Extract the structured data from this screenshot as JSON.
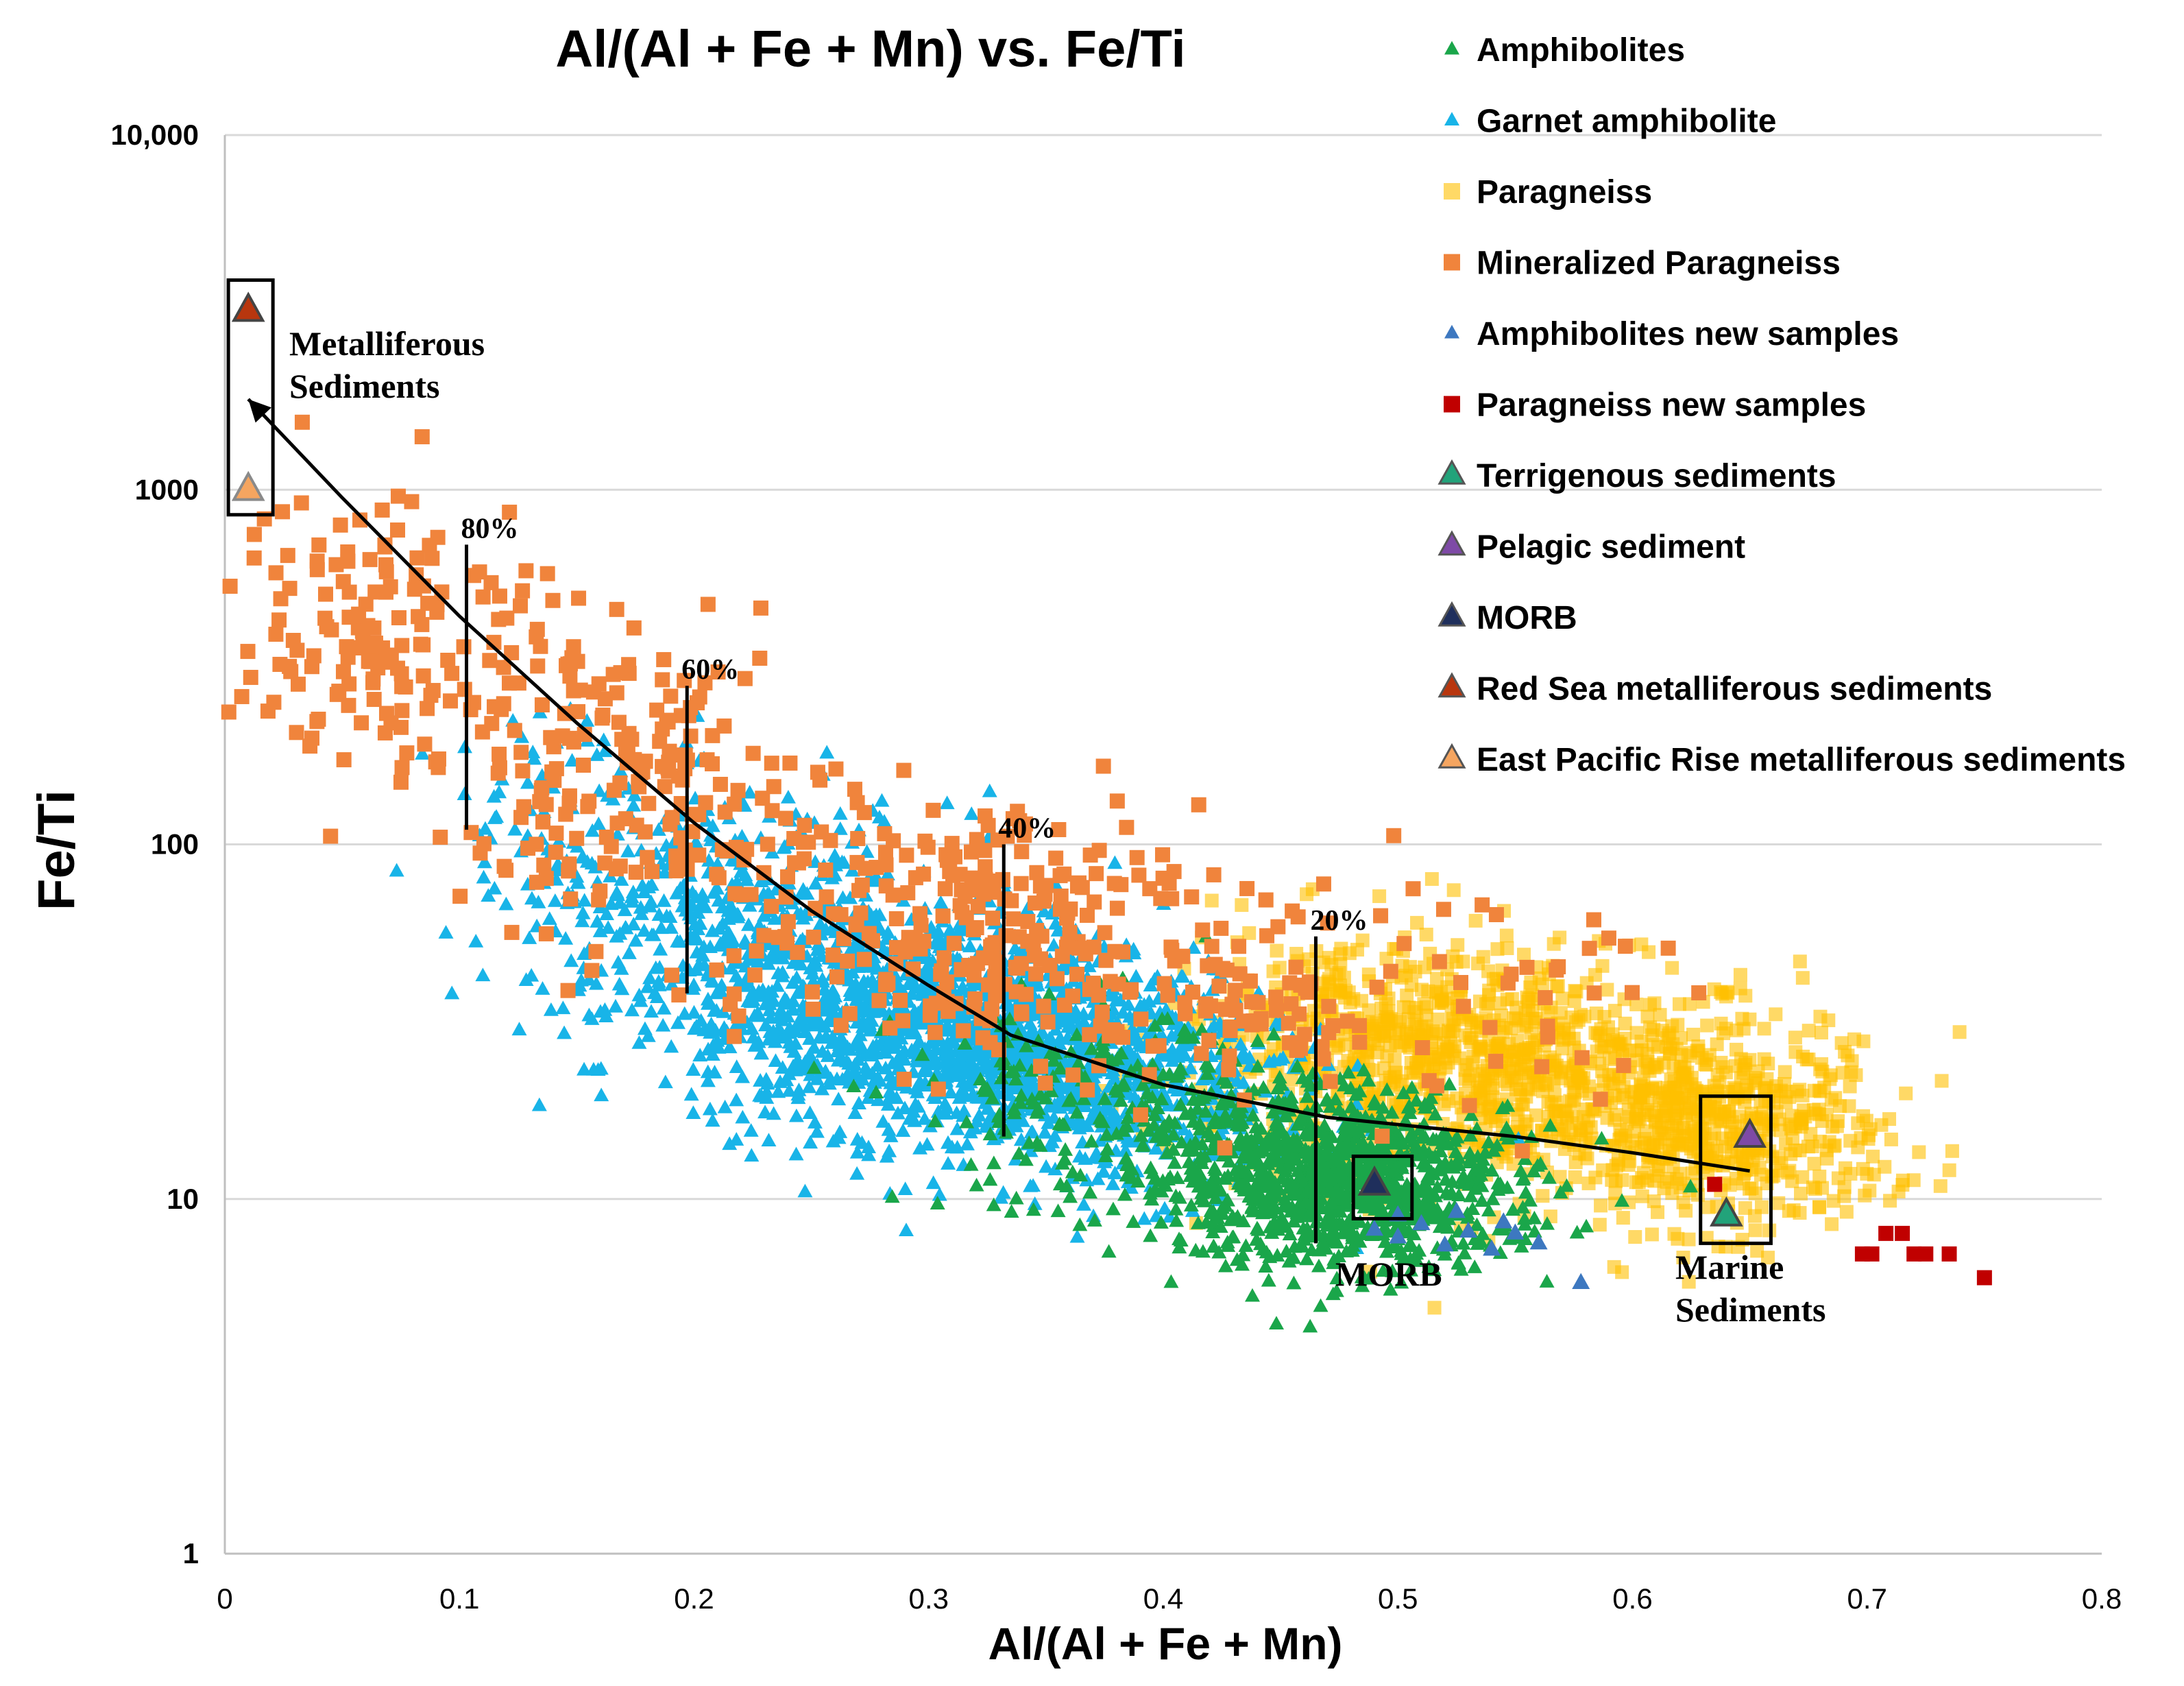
{
  "chart_data": {
    "type": "scatter",
    "title": "Al/(Al + Fe + Mn) vs. Fe/Ti",
    "xlabel": "Al/(Al + Fe + Mn)",
    "ylabel": "Fe/Ti",
    "x_range": [
      0,
      0.8
    ],
    "y_range": [
      1,
      10000
    ],
    "y_scale": "log",
    "x_ticks": [
      "0",
      "0.1",
      "0.2",
      "0.3",
      "0.4",
      "0.5",
      "0.6",
      "0.7",
      "0.8"
    ],
    "x_tick_values": [
      0,
      0.1,
      0.2,
      0.3,
      0.4,
      0.5,
      0.6,
      0.7,
      0.8
    ],
    "y_ticks": [
      "1",
      "10",
      "100",
      "1000",
      "10,000"
    ],
    "y_tick_values": [
      1,
      10,
      100,
      1000,
      10000
    ],
    "grid": "horizontal",
    "legend_position": "top-right",
    "series": [
      {
        "name": "Amphibolites",
        "marker": "triangle-small",
        "color": "#1aa64a",
        "clusters": [
          {
            "cx": 0.46,
            "cy": 12,
            "sx": 0.035,
            "sy": 1.35,
            "n": 700
          },
          {
            "cx": 0.5,
            "cy": 10,
            "sx": 0.035,
            "sy": 1.25,
            "n": 350
          },
          {
            "cx": 0.37,
            "cy": 18,
            "sx": 0.04,
            "sy": 1.4,
            "n": 200
          }
        ]
      },
      {
        "name": "Garnet amphibolite",
        "marker": "triangle-small",
        "color": "#18b4e8",
        "clusters": [
          {
            "cx": 0.3,
            "cy": 32,
            "sx": 0.05,
            "sy": 1.45,
            "n": 1200
          },
          {
            "cx": 0.22,
            "cy": 60,
            "sx": 0.045,
            "sy": 1.5,
            "n": 400
          },
          {
            "cx": 0.38,
            "cy": 20,
            "sx": 0.04,
            "sy": 1.4,
            "n": 500
          },
          {
            "cx": 0.15,
            "cy": 110,
            "sx": 0.03,
            "sy": 1.5,
            "n": 90
          }
        ]
      },
      {
        "name": "Paragneiss",
        "marker": "square-small",
        "color": "#ffc000",
        "clusters": [
          {
            "cx": 0.55,
            "cy": 22,
            "sx": 0.06,
            "sy": 1.45,
            "n": 800
          },
          {
            "cx": 0.64,
            "cy": 15,
            "sx": 0.035,
            "sy": 1.35,
            "n": 450
          },
          {
            "cx": 0.48,
            "cy": 30,
            "sx": 0.04,
            "sy": 1.4,
            "n": 300
          }
        ]
      },
      {
        "name": "Mineralized Paragneiss",
        "marker": "square",
        "color": "#f0843c",
        "clusters": [
          {
            "cx": 0.07,
            "cy": 420,
            "sx": 0.035,
            "sy": 1.6,
            "n": 150
          },
          {
            "cx": 0.17,
            "cy": 160,
            "sx": 0.04,
            "sy": 1.55,
            "n": 180
          },
          {
            "cx": 0.3,
            "cy": 65,
            "sx": 0.06,
            "sy": 1.5,
            "n": 260
          },
          {
            "cx": 0.45,
            "cy": 35,
            "sx": 0.07,
            "sy": 1.4,
            "n": 150
          }
        ],
        "points": [
          [
            0.033,
            1550
          ],
          [
            0.105,
            108
          ],
          [
            0.47,
            60
          ],
          [
            0.555,
            45
          ]
        ]
      },
      {
        "name": "Amphibolites new samples",
        "marker": "triangle",
        "color": "#3d78c0",
        "points": [
          [
            0.49,
            8.2
          ],
          [
            0.5,
            7.8
          ],
          [
            0.51,
            8.5
          ],
          [
            0.52,
            7.4
          ],
          [
            0.53,
            8.1
          ],
          [
            0.54,
            7.2
          ],
          [
            0.55,
            8.0
          ],
          [
            0.56,
            7.5
          ],
          [
            0.578,
            5.8
          ],
          [
            0.5,
            9.0
          ],
          [
            0.525,
            9.2
          ],
          [
            0.545,
            8.6
          ]
        ]
      },
      {
        "name": "Paragneiss new samples",
        "marker": "square",
        "color": "#c00000",
        "points": [
          [
            0.635,
            11
          ],
          [
            0.698,
            7
          ],
          [
            0.702,
            7
          ],
          [
            0.708,
            8
          ],
          [
            0.715,
            8
          ],
          [
            0.72,
            7
          ],
          [
            0.725,
            7
          ],
          [
            0.735,
            7
          ],
          [
            0.75,
            6
          ]
        ]
      },
      {
        "name": "Terrigenous sediments",
        "marker": "triangle-large",
        "color": "#22a37a",
        "points": [
          [
            0.64,
            9
          ]
        ]
      },
      {
        "name": "Pelagic sediment",
        "marker": "triangle-large",
        "color": "#7e4aa6",
        "points": [
          [
            0.65,
            15
          ]
        ]
      },
      {
        "name": "MORB",
        "marker": "triangle-large",
        "color": "#1f2f5c",
        "points": [
          [
            0.49,
            11
          ]
        ]
      },
      {
        "name": "Red Sea metalliferous sediments",
        "marker": "triangle-large",
        "color": "#b8360e",
        "points": [
          [
            0.01,
            3200
          ]
        ]
      },
      {
        "name": "East Pacific Rise metalliferous sediments",
        "marker": "triangle-large",
        "color": "#f5a560",
        "points": [
          [
            0.01,
            1000
          ]
        ]
      }
    ],
    "mixing_curve": {
      "points": [
        [
          0.01,
          1800
        ],
        [
          0.05,
          950
        ],
        [
          0.1,
          440
        ],
        [
          0.15,
          220
        ],
        [
          0.2,
          115
        ],
        [
          0.25,
          65
        ],
        [
          0.3,
          40
        ],
        [
          0.335,
          29
        ],
        [
          0.4,
          21
        ],
        [
          0.47,
          17
        ],
        [
          0.55,
          15
        ],
        [
          0.6,
          13.5
        ],
        [
          0.65,
          12
        ]
      ],
      "arrow_at": "start"
    },
    "percent_markers": [
      {
        "label": "80%",
        "x": 0.103,
        "y_low": 110,
        "y_high": 700
      },
      {
        "label": "60%",
        "x": 0.197,
        "y_low": 38,
        "y_high": 280
      },
      {
        "label": "40%",
        "x": 0.332,
        "y_low": 15,
        "y_high": 100
      },
      {
        "label": "20%",
        "x": 0.465,
        "y_low": 7.5,
        "y_high": 55
      }
    ],
    "annotations": [
      {
        "name": "metalliferous-sediments",
        "lines": [
          "Metalliferous",
          "Sediments"
        ],
        "box_x": [
          0.0015,
          0.0205
        ],
        "box_y": [
          850,
          3900
        ]
      },
      {
        "name": "morb",
        "lines": [
          "MORB"
        ],
        "box_x": [
          0.481,
          0.506
        ],
        "box_y": [
          8.8,
          13.2
        ]
      },
      {
        "name": "marine-sediments",
        "lines": [
          "Marine",
          "Sediments"
        ],
        "box_x": [
          0.629,
          0.659
        ],
        "box_y": [
          7.5,
          19.5
        ]
      }
    ]
  }
}
